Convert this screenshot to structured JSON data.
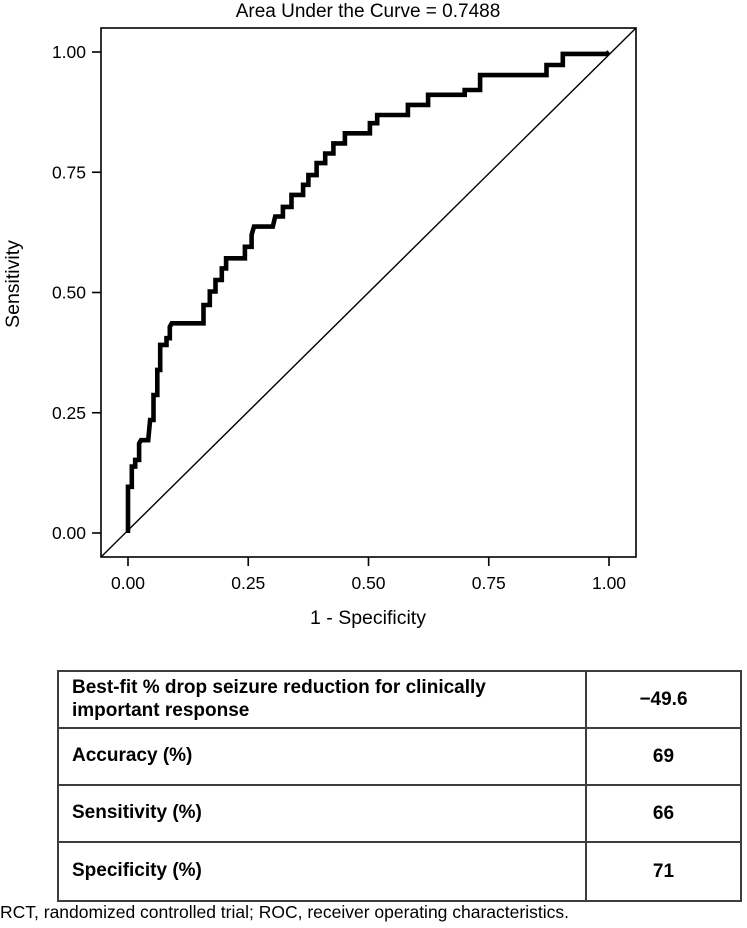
{
  "chart_data": {
    "type": "line",
    "subtype": "roc-step-curve",
    "title": "Area Under the Curve = 0.7488",
    "auc": 0.7488,
    "xlabel": "1 - Specificity",
    "ylabel": "Sensitivity",
    "xlim": [
      0,
      1
    ],
    "ylim": [
      0,
      1
    ],
    "grid": false,
    "xticks": [
      0.0,
      0.25,
      0.5,
      0.75,
      1.0
    ],
    "xtick_labels": [
      "0.00",
      "0.25",
      "0.50",
      "0.75",
      "1.00"
    ],
    "yticks": [
      0.0,
      0.25,
      0.5,
      0.75,
      1.0
    ],
    "ytick_labels": [
      "0.00",
      "0.25",
      "0.50",
      "0.75",
      "1.00"
    ],
    "series": [
      {
        "name": "ROC curve",
        "style": "step",
        "color": "#000000",
        "points": [
          [
            0.0,
            0.0
          ],
          [
            0.0,
            0.096
          ],
          [
            0.008,
            0.096
          ],
          [
            0.008,
            0.138
          ],
          [
            0.015,
            0.138
          ],
          [
            0.015,
            0.152
          ],
          [
            0.023,
            0.152
          ],
          [
            0.023,
            0.186
          ],
          [
            0.027,
            0.193
          ],
          [
            0.042,
            0.193
          ],
          [
            0.046,
            0.235
          ],
          [
            0.053,
            0.235
          ],
          [
            0.053,
            0.287
          ],
          [
            0.061,
            0.287
          ],
          [
            0.061,
            0.339
          ],
          [
            0.067,
            0.339
          ],
          [
            0.067,
            0.391
          ],
          [
            0.08,
            0.391
          ],
          [
            0.08,
            0.405
          ],
          [
            0.087,
            0.405
          ],
          [
            0.087,
            0.429
          ],
          [
            0.091,
            0.436
          ],
          [
            0.157,
            0.436
          ],
          [
            0.157,
            0.474
          ],
          [
            0.17,
            0.474
          ],
          [
            0.17,
            0.502
          ],
          [
            0.182,
            0.502
          ],
          [
            0.182,
            0.526
          ],
          [
            0.195,
            0.526
          ],
          [
            0.195,
            0.55
          ],
          [
            0.204,
            0.55
          ],
          [
            0.204,
            0.571
          ],
          [
            0.243,
            0.571
          ],
          [
            0.243,
            0.595
          ],
          [
            0.257,
            0.595
          ],
          [
            0.257,
            0.62
          ],
          [
            0.262,
            0.637
          ],
          [
            0.301,
            0.637
          ],
          [
            0.306,
            0.658
          ],
          [
            0.322,
            0.658
          ],
          [
            0.322,
            0.678
          ],
          [
            0.34,
            0.678
          ],
          [
            0.34,
            0.703
          ],
          [
            0.364,
            0.703
          ],
          [
            0.364,
            0.724
          ],
          [
            0.375,
            0.724
          ],
          [
            0.375,
            0.744
          ],
          [
            0.392,
            0.744
          ],
          [
            0.392,
            0.769
          ],
          [
            0.41,
            0.769
          ],
          [
            0.41,
            0.789
          ],
          [
            0.427,
            0.789
          ],
          [
            0.427,
            0.81
          ],
          [
            0.451,
            0.81
          ],
          [
            0.451,
            0.831
          ],
          [
            0.503,
            0.831
          ],
          [
            0.503,
            0.852
          ],
          [
            0.518,
            0.852
          ],
          [
            0.518,
            0.869
          ],
          [
            0.582,
            0.869
          ],
          [
            0.582,
            0.89
          ],
          [
            0.624,
            0.89
          ],
          [
            0.624,
            0.911
          ],
          [
            0.7,
            0.911
          ],
          [
            0.7,
            0.921
          ],
          [
            0.732,
            0.921
          ],
          [
            0.732,
            0.952
          ],
          [
            0.87,
            0.952
          ],
          [
            0.87,
            0.973
          ],
          [
            0.904,
            0.973
          ],
          [
            0.904,
            0.996
          ],
          [
            0.995,
            0.996
          ],
          [
            1.0,
            1.0
          ]
        ]
      },
      {
        "name": "reference diagonal",
        "style": "line",
        "color": "#000000",
        "points": [
          [
            0,
            0
          ],
          [
            1,
            1
          ]
        ]
      }
    ],
    "legend": null
  },
  "table": {
    "rows": [
      {
        "label": "Best-fit % drop seizure reduction for clinically important response",
        "value": "−49.6"
      },
      {
        "label": "Accuracy (%)",
        "value": "69"
      },
      {
        "label": "Sensitivity (%)",
        "value": "66"
      },
      {
        "label": "Specificity (%)",
        "value": "71"
      }
    ]
  },
  "footnote": "RCT, randomized controlled trial; ROC, receiver operating characteristics.",
  "colors": {
    "curve": "#000000",
    "axis": "#000000",
    "table_border": "#3d3d3d",
    "text": "#000000",
    "background": "#ffffff"
  }
}
